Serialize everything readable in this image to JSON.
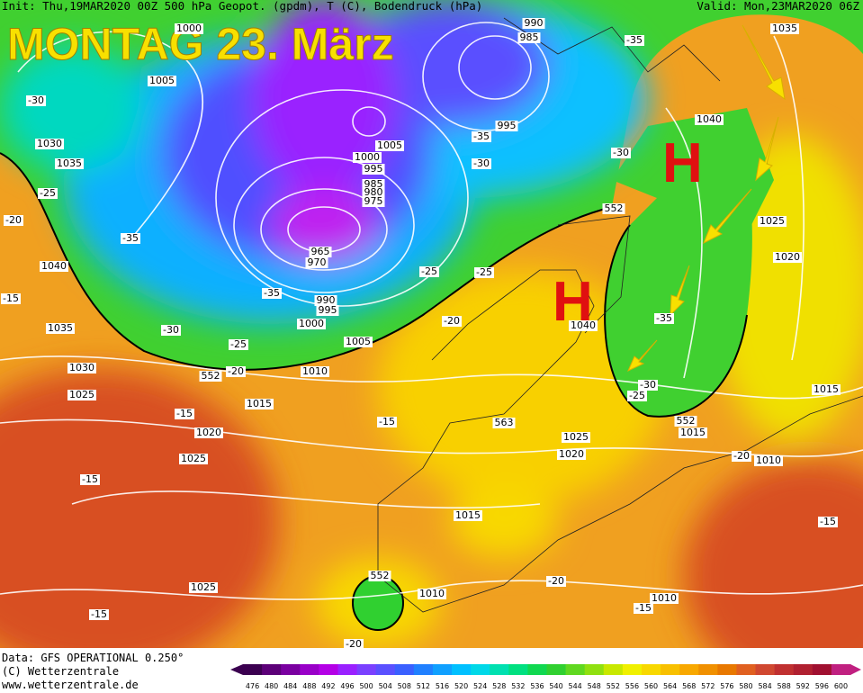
{
  "header": {
    "init": "Init: Thu,19MAR2020 00Z 500 hPa Geopot. (gpdm), T (C), Bodendruck (hPa)",
    "valid": "Valid: Mon,23MAR2020 06Z"
  },
  "title": "MONTAG 23. März",
  "highs": [
    "H",
    "H"
  ],
  "map": {
    "labels": [
      "1005",
      "1000",
      "990",
      "985",
      "-35",
      "1035",
      "995",
      "-35",
      "-30",
      "-30",
      "1040",
      "-30",
      "1030",
      "1035",
      "-25",
      "-20",
      "-35",
      "1040",
      "1005",
      "1000",
      "995",
      "985",
      "980",
      "975",
      "965",
      "970",
      "990",
      "995",
      "1000",
      "1005",
      "-35",
      "-30",
      "-25",
      "-25",
      "-25",
      "-20",
      "1010",
      "1015",
      "1030",
      "1025",
      "1035",
      "-15",
      "552",
      "1025",
      "1020",
      "1040",
      "-35",
      "-30",
      "-25",
      "552",
      "1015",
      "-20",
      "1010",
      "1015",
      "-20",
      "552",
      "-15",
      "1020",
      "-15",
      "563",
      "1025",
      "1020",
      "1025",
      "-15",
      "1015",
      "-15",
      "552",
      "-20",
      "1010",
      "1010",
      "-15",
      "1025",
      "-15",
      "-20"
    ]
  },
  "footer": [
    "Data: GFS OPERATIONAL 0.250°",
    "(C) Wetterzentrale",
    "www.wetterzentrale.de"
  ],
  "colorbar": {
    "ticks": [
      476,
      480,
      484,
      488,
      492,
      496,
      500,
      504,
      508,
      512,
      516,
      520,
      524,
      528,
      532,
      536,
      540,
      544,
      548,
      552,
      556,
      560,
      564,
      568,
      572,
      576,
      580,
      584,
      588,
      592,
      596,
      600
    ],
    "colors": [
      "#3b0050",
      "#5c0078",
      "#7a00a0",
      "#9900c8",
      "#b400e6",
      "#9a20ff",
      "#7a40ff",
      "#5a50ff",
      "#3a60ff",
      "#2080ff",
      "#10a0ff",
      "#00c0ff",
      "#00d8e8",
      "#00e0b0",
      "#00e080",
      "#10d850",
      "#30d030",
      "#60d820",
      "#90e010",
      "#c8e800",
      "#f0f000",
      "#f8d800",
      "#f8c000",
      "#f8a800",
      "#f09000",
      "#e87800",
      "#e06020",
      "#d04830",
      "#c03030",
      "#b02030",
      "#a01030",
      "#c02080"
    ]
  }
}
